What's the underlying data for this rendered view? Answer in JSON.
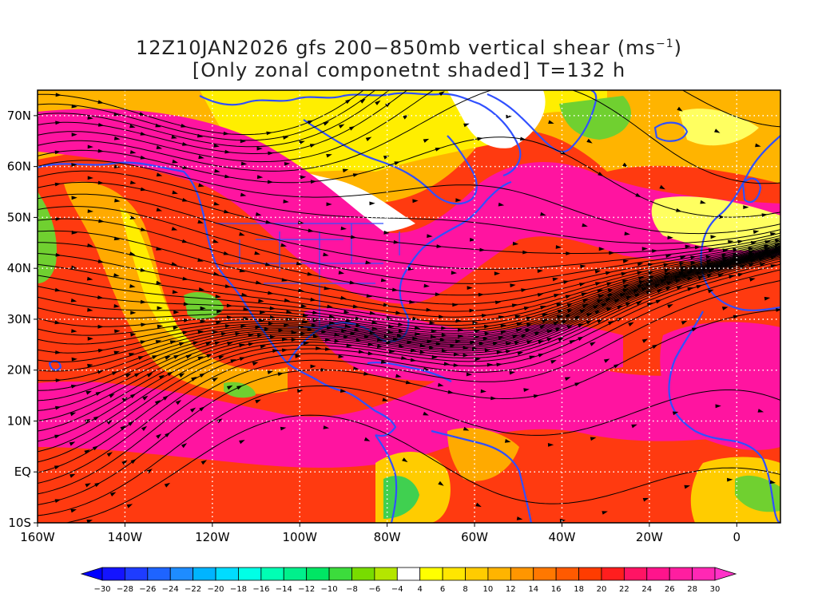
{
  "title": {
    "line1_pre": "12Z10JAN2026 gfs 200−850mb vertical shear (ms",
    "line1_sup": "−1",
    "line1_post": ")",
    "line2": "[Only zonal componetnt shaded] T=132 h"
  },
  "map": {
    "lon_range": [
      -160,
      10
    ],
    "lat_range": [
      -10,
      75
    ],
    "lat_labels": [
      {
        "lat": 70,
        "text": "70N"
      },
      {
        "lat": 60,
        "text": "60N"
      },
      {
        "lat": 50,
        "text": "50N"
      },
      {
        "lat": 40,
        "text": "40N"
      },
      {
        "lat": 30,
        "text": "30N"
      },
      {
        "lat": 20,
        "text": "20N"
      },
      {
        "lat": 10,
        "text": "10N"
      },
      {
        "lat": 0,
        "text": "EQ"
      },
      {
        "lat": -10,
        "text": "10S"
      }
    ],
    "lon_labels": [
      {
        "lon": -160,
        "text": "160W"
      },
      {
        "lon": -140,
        "text": "140W"
      },
      {
        "lon": -120,
        "text": "120W"
      },
      {
        "lon": -100,
        "text": "100W"
      },
      {
        "lon": -80,
        "text": "80W"
      },
      {
        "lon": -60,
        "text": "60W"
      },
      {
        "lon": -40,
        "text": "40W"
      },
      {
        "lon": -20,
        "text": "20W"
      },
      {
        "lon": 0,
        "text": "0"
      }
    ],
    "colors": {
      "shear_high": "#ff1493",
      "shear_mid": "#ff4500",
      "shear_low": "#ffa500",
      "shear_weak": "#ffff00",
      "coastline": "#3050ff",
      "streamline": "#000000",
      "grid": "#ffffff"
    }
  },
  "colorbar": {
    "labels": [
      "−30",
      "−28",
      "−26",
      "−24",
      "−22",
      "−20",
      "−18",
      "−16",
      "−14",
      "−12",
      "−10",
      "−8",
      "−6",
      "−4",
      "4",
      "6",
      "8",
      "10",
      "12",
      "14",
      "16",
      "18",
      "20",
      "22",
      "24",
      "26",
      "28",
      "30"
    ],
    "colors": [
      "#1414ff",
      "#1e3cff",
      "#1e64ff",
      "#1e8cff",
      "#00b4ff",
      "#00dcff",
      "#00ffe6",
      "#00ffb4",
      "#00f08c",
      "#00e664",
      "#3cdc3c",
      "#78dc00",
      "#b4e600",
      "#ffffff",
      "#ffff00",
      "#ffe600",
      "#ffcc00",
      "#ffb400",
      "#ff9600",
      "#ff7800",
      "#ff5a00",
      "#ff3c00",
      "#ff1e1e",
      "#ff1464",
      "#ff148c",
      "#ff1ea0",
      "#ff28b4"
    ],
    "left_arrow_color": "#0000ff",
    "right_arrow_color": "#ff32c8"
  }
}
